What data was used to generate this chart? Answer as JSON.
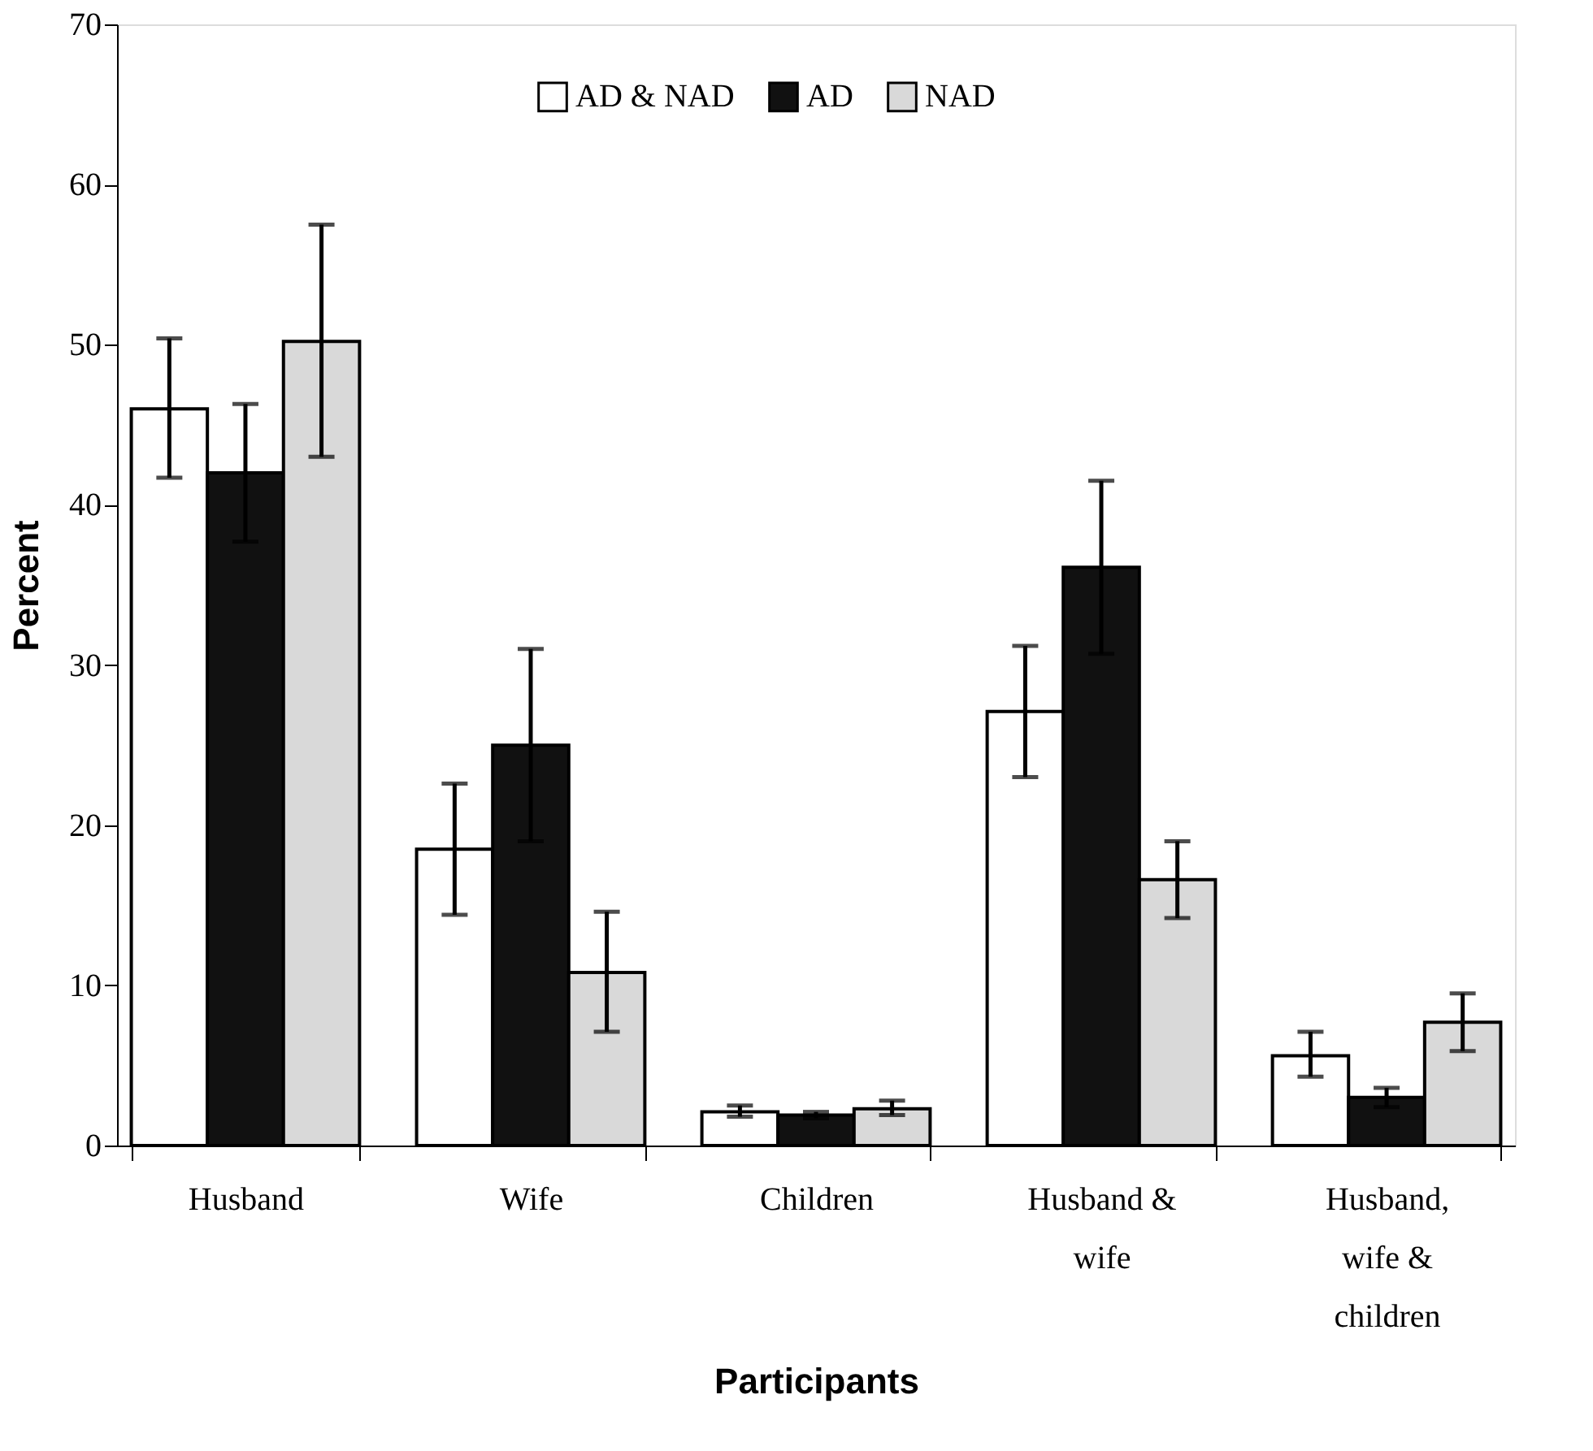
{
  "chart_data": {
    "type": "bar",
    "xlabel": "Participants",
    "ylabel": "Percent",
    "categories": [
      "Husband",
      "Wife",
      "Children",
      "Husband &\nwife",
      "Husband,\nwife &\nchildren"
    ],
    "series": [
      {
        "name": "AD & NAD",
        "color": "#ffffff",
        "values": [
          46,
          18.5,
          2.1,
          27.1,
          5.6
        ],
        "errors": [
          [
            41.7,
            50.4
          ],
          [
            14.4,
            22.6
          ],
          [
            1.8,
            2.5
          ],
          [
            23,
            31.2
          ],
          [
            4.3,
            7.1
          ]
        ]
      },
      {
        "name": "AD",
        "color": "#111111",
        "values": [
          42,
          25,
          1.9,
          36.1,
          3.0
        ],
        "errors": [
          [
            37.7,
            46.3
          ],
          [
            19,
            31
          ],
          [
            1.7,
            2.1
          ],
          [
            30.7,
            41.5
          ],
          [
            2.4,
            3.6
          ]
        ]
      },
      {
        "name": "NAD",
        "color": "#d9d9d9",
        "values": [
          50.2,
          10.8,
          2.3,
          16.6,
          7.7
        ],
        "errors": [
          [
            43,
            57.5
          ],
          [
            7.1,
            14.6
          ],
          [
            1.9,
            2.8
          ],
          [
            14.2,
            19
          ],
          [
            5.9,
            9.5
          ]
        ]
      }
    ],
    "ylim": [
      0,
      70
    ],
    "yticks": [
      0,
      10,
      20,
      30,
      40,
      50,
      60,
      70
    ],
    "grid": false,
    "legend": "top"
  }
}
